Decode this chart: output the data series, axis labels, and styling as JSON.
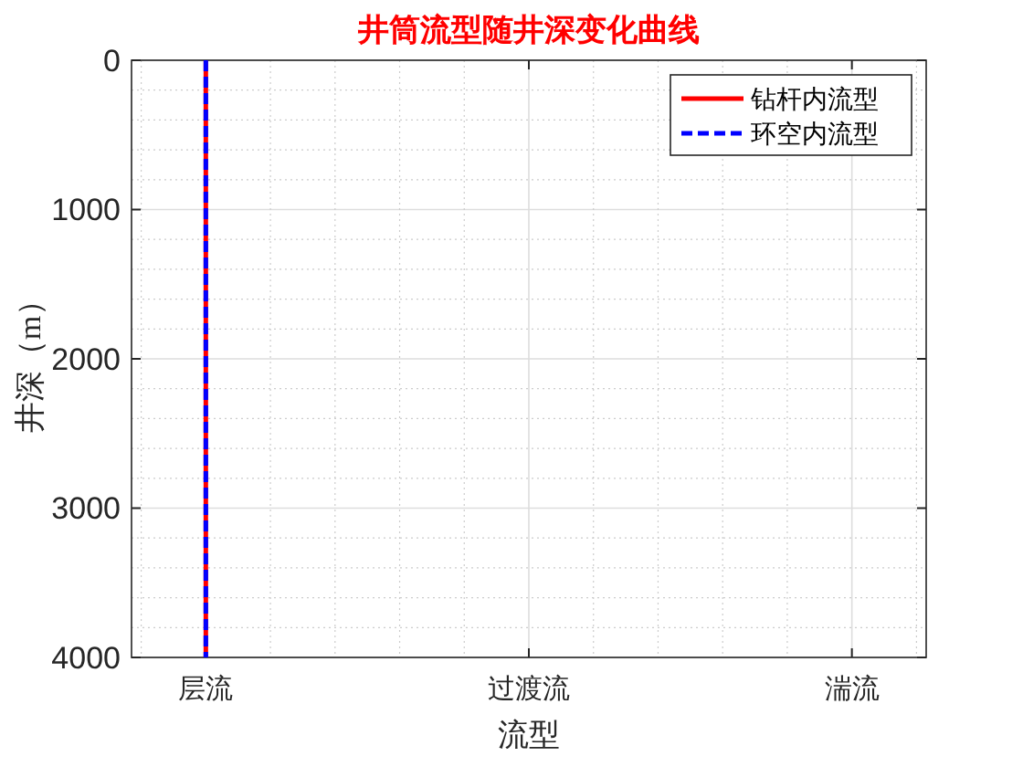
{
  "chart_data": {
    "type": "line",
    "title": "井筒流型随井深变化曲线",
    "xlabel": "流型",
    "ylabel": "井深（m）",
    "categories": [
      "层流",
      "过渡流",
      "湍流"
    ],
    "ylim": [
      4000,
      0
    ],
    "yticks": [
      0,
      1000,
      2000,
      3000,
      4000
    ],
    "grid": true,
    "legend": "top right",
    "series": [
      {
        "name": "钻杆内流型",
        "color": "#ff0000",
        "line_style": "solid",
        "x": [
          "层流",
          "层流"
        ],
        "values": [
          0,
          4000
        ]
      },
      {
        "name": "环空内流型",
        "color": "#0000ff",
        "line_style": "dashed",
        "x": [
          "层流",
          "层流"
        ],
        "values": [
          0,
          4000
        ]
      }
    ]
  }
}
